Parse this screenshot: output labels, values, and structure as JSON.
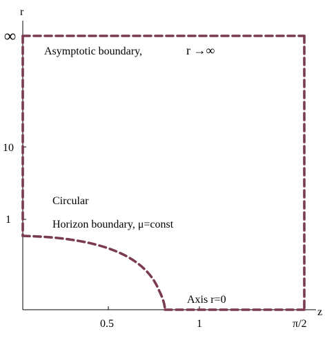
{
  "colors": {
    "boundary": "#7a3a4f",
    "axis": "#000000"
  },
  "axes": {
    "x_label": "z",
    "y_label": "r",
    "x_ticks": [
      "0.5",
      "1",
      "π/2"
    ],
    "y_ticks": [
      "∞",
      "10",
      "1"
    ]
  },
  "annotations": {
    "asymptotic_label": "Asymptotic boundary,",
    "asymptotic_limit": "r →∞",
    "circular_label": "Circular",
    "horizon_label": "Horizon boundary,  μ=const",
    "axis_label": "Axis r=0"
  }
}
